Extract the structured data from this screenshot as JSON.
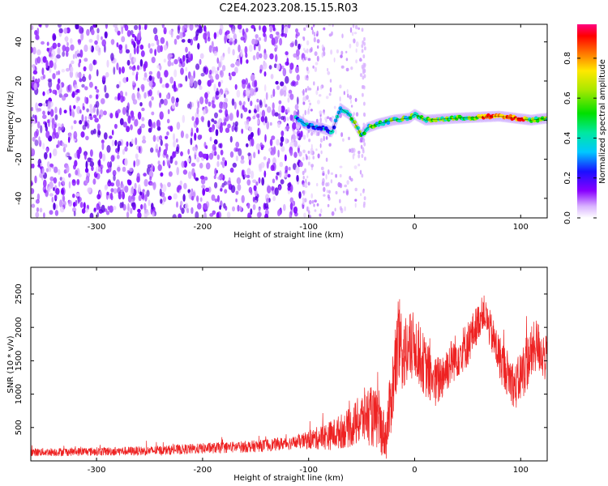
{
  "title": "C2E4.2023.208.15.15.R03",
  "colors": {
    "snr_line": "#ee2222",
    "spectro_bg": "#ffffff",
    "frame": "#000000"
  },
  "chart_data": [
    {
      "type": "heatmap",
      "title": "C2E4.2023.208.15.15.R03",
      "xlabel": "Height of straight line (km)",
      "ylabel": "Frequency (Hz)",
      "xlim": [
        -362,
        125
      ],
      "ylim": [
        -50,
        49
      ],
      "xticks": [
        -300,
        -200,
        -100,
        0,
        100
      ],
      "yticks": [
        -40,
        -20,
        0,
        20,
        40
      ],
      "colorbar": {
        "label": "Normalized spectral amplitude",
        "range": [
          0.0,
          0.97
        ],
        "ticks": [
          0.0,
          0.2,
          0.4,
          0.6,
          0.8
        ]
      },
      "features": {
        "noise_region_x": [
          -362,
          -105
        ],
        "sparse_noise_x": [
          -105,
          -48
        ],
        "signal_track": [
          {
            "x": -112,
            "y": 1
          },
          {
            "x": -100,
            "y": -3
          },
          {
            "x": -88,
            "y": -4
          },
          {
            "x": -78,
            "y": -6
          },
          {
            "x": -70,
            "y": 6
          },
          {
            "x": -62,
            "y": 3
          },
          {
            "x": -55,
            "y": -3
          },
          {
            "x": -50,
            "y": -8
          },
          {
            "x": -45,
            "y": -4
          },
          {
            "x": -35,
            "y": -2
          },
          {
            "x": -20,
            "y": 0
          },
          {
            "x": -5,
            "y": 1
          },
          {
            "x": 0,
            "y": 3
          },
          {
            "x": 10,
            "y": 0
          },
          {
            "x": 40,
            "y": 1
          },
          {
            "x": 80,
            "y": 2
          },
          {
            "x": 110,
            "y": 0
          },
          {
            "x": 125,
            "y": 1
          }
        ]
      }
    },
    {
      "type": "line",
      "xlabel": "Height of straight line (km)",
      "ylabel": "SNR (10 * v/v)",
      "xlim": [
        -362,
        125
      ],
      "ylim": [
        0,
        2900
      ],
      "xticks": [
        -300,
        -200,
        -100,
        0,
        100
      ],
      "yticks": [
        500,
        1000,
        1500,
        2000,
        2500
      ],
      "envelope": [
        {
          "x": -362,
          "base": 130,
          "amp": 60
        },
        {
          "x": -250,
          "base": 150,
          "amp": 70
        },
        {
          "x": -150,
          "base": 220,
          "amp": 90
        },
        {
          "x": -110,
          "base": 280,
          "amp": 100
        },
        {
          "x": -80,
          "base": 380,
          "amp": 220
        },
        {
          "x": -60,
          "base": 500,
          "amp": 300
        },
        {
          "x": -45,
          "base": 700,
          "amp": 450
        },
        {
          "x": -35,
          "base": 600,
          "amp": 450
        },
        {
          "x": -27,
          "base": 350,
          "amp": 350
        },
        {
          "x": -20,
          "base": 1200,
          "amp": 600
        },
        {
          "x": -15,
          "base": 1750,
          "amp": 700
        },
        {
          "x": -8,
          "base": 1600,
          "amp": 600
        },
        {
          "x": 0,
          "base": 1750,
          "amp": 500
        },
        {
          "x": 10,
          "base": 1400,
          "amp": 450
        },
        {
          "x": 20,
          "base": 1150,
          "amp": 400
        },
        {
          "x": 35,
          "base": 1500,
          "amp": 350
        },
        {
          "x": 50,
          "base": 1750,
          "amp": 350
        },
        {
          "x": 65,
          "base": 2250,
          "amp": 250
        },
        {
          "x": 80,
          "base": 1550,
          "amp": 350
        },
        {
          "x": 95,
          "base": 1100,
          "amp": 350
        },
        {
          "x": 105,
          "base": 1450,
          "amp": 450
        },
        {
          "x": 115,
          "base": 1750,
          "amp": 400
        },
        {
          "x": 125,
          "base": 1500,
          "amp": 350
        }
      ]
    }
  ]
}
